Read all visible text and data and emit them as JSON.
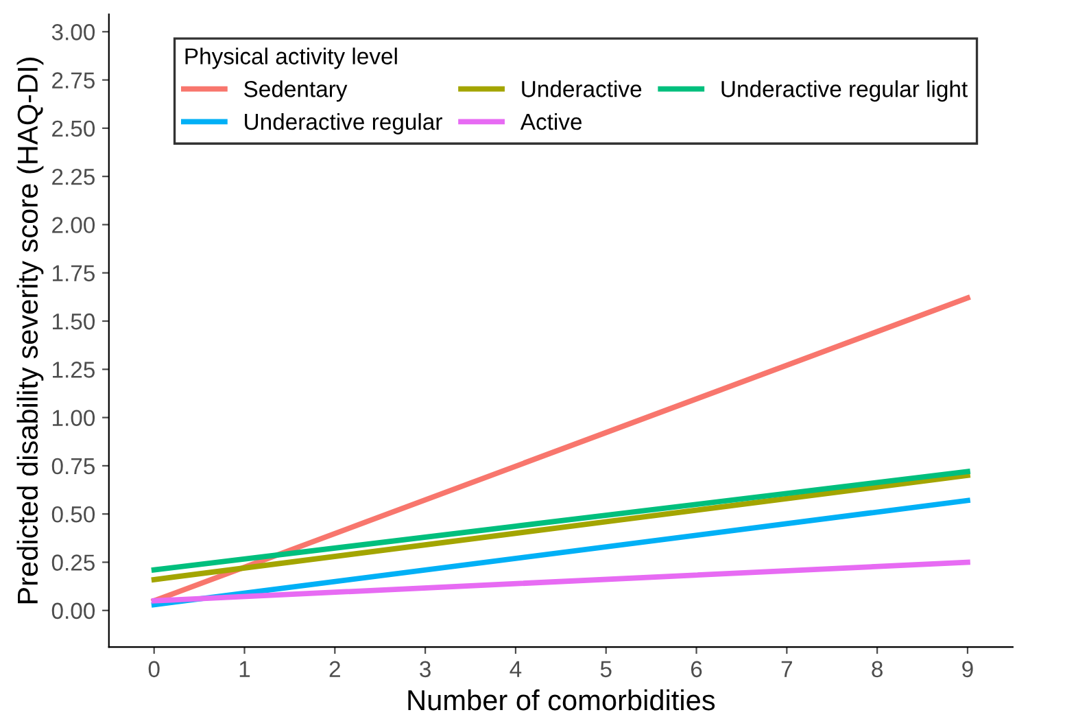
{
  "chart_data": {
    "type": "line",
    "xlabel": "Number of comorbidities",
    "ylabel": "Predicted disability severity score (HAQ-DI)",
    "legend_title": "Physical activity level",
    "legend": "top left",
    "grid": false,
    "marker": "none",
    "line_style": "solid",
    "xlim": [
      -0.5,
      9.5
    ],
    "xticks": [
      0,
      1,
      2,
      3,
      4,
      5,
      6,
      7,
      8,
      9
    ],
    "ylim": [
      -0.19,
      3.09
    ],
    "yticks": [
      {
        "value": 0,
        "label": "0.00"
      },
      {
        "value": 0.25,
        "label": "0.25"
      },
      {
        "value": 0.5,
        "label": "0.50"
      },
      {
        "value": 0.75,
        "label": "0.75"
      },
      {
        "value": 1,
        "label": "1.00"
      },
      {
        "value": 1.25,
        "label": "1.25"
      },
      {
        "value": 1.5,
        "label": "1.50"
      },
      {
        "value": 1.75,
        "label": "1.75"
      },
      {
        "value": 2,
        "label": "2.00"
      },
      {
        "value": 2.25,
        "label": "2.25"
      },
      {
        "value": 2.5,
        "label": "2.50"
      },
      {
        "value": 2.75,
        "label": "2.75"
      },
      {
        "value": 3,
        "label": "3.00"
      }
    ],
    "x": [
      0,
      9
    ],
    "series": [
      {
        "name": "Sedentary",
        "color": "#f8766d",
        "values": [
          0.05,
          1.62
        ]
      },
      {
        "name": "Underactive regular",
        "color": "#00b0f6",
        "values": [
          0.03,
          0.57
        ]
      },
      {
        "name": "Underactive",
        "color": "#a3a500",
        "values": [
          0.16,
          0.7
        ]
      },
      {
        "name": "Active",
        "color": "#e76bf3",
        "values": [
          0.05,
          0.25
        ]
      },
      {
        "name": "Underactive regular light",
        "color": "#00bf7d",
        "values": [
          0.21,
          0.72
        ]
      }
    ]
  }
}
